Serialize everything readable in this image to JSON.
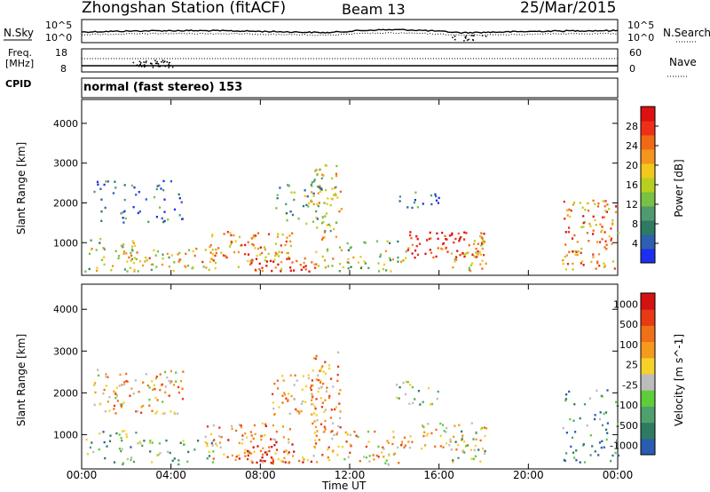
{
  "header": {
    "station": "Zhongshan Station (fitACF)",
    "beam": "Beam 13",
    "date": "25/Mar/2015"
  },
  "strip_panels": {
    "noise": {
      "left_label": "N.Sky",
      "right_label": "N.Search",
      "left_ticks": [
        "10^5",
        "10^0"
      ],
      "right_ticks": [
        "10^5",
        "10^0"
      ]
    },
    "freq": {
      "left_label_lines": [
        "Freq.",
        "[MHz]"
      ],
      "right_label": "Nave",
      "left_ticks": [
        "18",
        "8"
      ],
      "right_ticks": [
        "60",
        "0"
      ]
    },
    "cpid": {
      "label": "CPID",
      "text": "normal (fast stereo) 153"
    }
  },
  "chart_data": [
    {
      "type": "heatmap",
      "title": "",
      "xlabel": "Time UT",
      "ylabel": "Slant Range [km]",
      "x_ticks": [
        "00:00",
        "04:00",
        "08:00",
        "12:00",
        "16:00",
        "20:00",
        "00:00"
      ],
      "xlim_hours": [
        0,
        24
      ],
      "y_ticks": [
        1000,
        2000,
        3000,
        4000
      ],
      "ylim": [
        180,
        4600
      ],
      "colorbar": {
        "label": "Power [dB]",
        "range": [
          0,
          32
        ],
        "ticks": [
          4,
          8,
          12,
          16,
          20,
          24,
          28
        ],
        "colors": [
          "#1e2ef0",
          "#2e5fb0",
          "#2e7a62",
          "#4f9a6e",
          "#79c044",
          "#b8cf1f",
          "#f2c81c",
          "#f5951f",
          "#f06a15",
          "#ee3018",
          "#dd1111"
        ]
      },
      "activity_regions": [
        {
          "t": [
            0.1,
            2.5
          ],
          "r": [
            300,
            1150
          ],
          "level": 0.45
        },
        {
          "t": [
            2.0,
            6.0
          ],
          "r": [
            300,
            900
          ],
          "level": 0.6
        },
        {
          "t": [
            5.5,
            9.5
          ],
          "r": [
            350,
            1300
          ],
          "level": 0.7
        },
        {
          "t": [
            7.5,
            10.5
          ],
          "r": [
            300,
            650
          ],
          "level": 0.9
        },
        {
          "t": [
            10.2,
            11.6
          ],
          "r": [
            400,
            3000
          ],
          "level": 0.55
        },
        {
          "t": [
            11.5,
            14.5
          ],
          "r": [
            300,
            1100
          ],
          "level": 0.45
        },
        {
          "t": [
            14.5,
            18.1
          ],
          "r": [
            650,
            1300
          ],
          "level": 0.95
        },
        {
          "t": [
            16.5,
            18.1
          ],
          "r": [
            300,
            1200
          ],
          "level": 0.6
        },
        {
          "t": [
            21.5,
            24.0
          ],
          "r": [
            350,
            2100
          ],
          "level": 0.7
        },
        {
          "t": [
            0.5,
            4.5
          ],
          "r": [
            1500,
            2600
          ],
          "level": 0.15
        },
        {
          "t": [
            8.5,
            11.0
          ],
          "r": [
            1500,
            2500
          ],
          "level": 0.35
        },
        {
          "t": [
            14.0,
            16.0
          ],
          "r": [
            1700,
            2300
          ],
          "level": 0.2
        }
      ]
    },
    {
      "type": "heatmap",
      "title": "",
      "xlabel": "Time UT",
      "ylabel": "Slant Range [km]",
      "x_ticks": [
        "00:00",
        "04:00",
        "08:00",
        "12:00",
        "16:00",
        "20:00",
        "00:00"
      ],
      "xlim_hours": [
        0,
        24
      ],
      "y_ticks": [
        1000,
        2000,
        3000,
        4000
      ],
      "ylim": [
        180,
        4600
      ],
      "colorbar": {
        "label": "Velocity [m s^-1]",
        "tick_labels": [
          "1000",
          "500",
          "100",
          "25",
          "-25",
          "-100",
          "-500",
          "-1000"
        ],
        "colors": [
          "#2a5cb0",
          "#2e7b62",
          "#4fa06c",
          "#5fcc3a",
          "#bcbcbc",
          "#f5d12a",
          "#f59a1c",
          "#f07018",
          "#e63a14",
          "#d41212"
        ]
      },
      "activity_regions": [
        {
          "t": [
            0.1,
            2.5
          ],
          "r": [
            300,
            1150
          ],
          "level": 0.3
        },
        {
          "t": [
            2.0,
            6.0
          ],
          "r": [
            300,
            900
          ],
          "level": 0.35
        },
        {
          "t": [
            5.5,
            9.5
          ],
          "r": [
            350,
            1300
          ],
          "level": 0.7
        },
        {
          "t": [
            7.5,
            10.5
          ],
          "r": [
            300,
            650
          ],
          "level": 0.8
        },
        {
          "t": [
            10.2,
            11.6
          ],
          "r": [
            400,
            3000
          ],
          "level": 0.65
        },
        {
          "t": [
            11.5,
            14.5
          ],
          "r": [
            300,
            1100
          ],
          "level": 0.6
        },
        {
          "t": [
            14.5,
            18.1
          ],
          "r": [
            650,
            1300
          ],
          "level": 0.55
        },
        {
          "t": [
            16.5,
            18.1
          ],
          "r": [
            300,
            1200
          ],
          "level": 0.35
        },
        {
          "t": [
            21.5,
            24.0
          ],
          "r": [
            350,
            2100
          ],
          "level": 0.2
        },
        {
          "t": [
            0.5,
            4.5
          ],
          "r": [
            1500,
            2600
          ],
          "level": 0.6
        },
        {
          "t": [
            8.5,
            11.0
          ],
          "r": [
            1500,
            2500
          ],
          "level": 0.65
        },
        {
          "t": [
            14.0,
            16.0
          ],
          "r": [
            1700,
            2300
          ],
          "level": 0.4
        }
      ]
    }
  ]
}
